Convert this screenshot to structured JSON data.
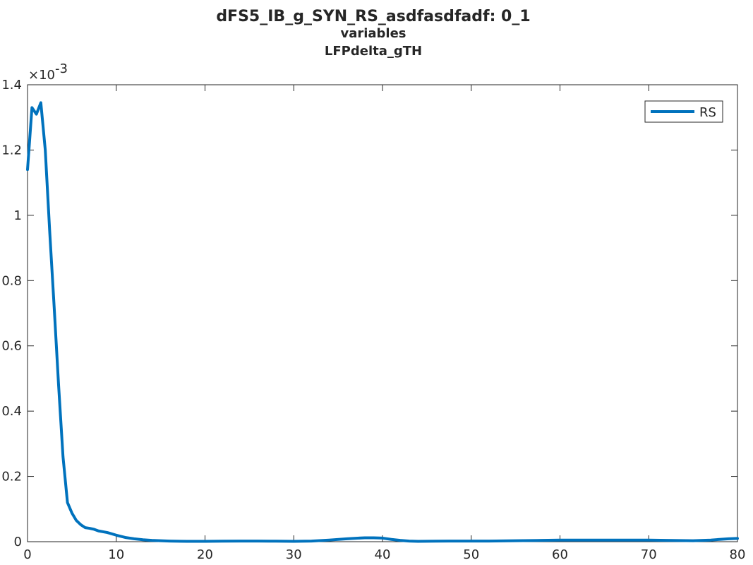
{
  "chart_data": {
    "type": "line",
    "title": "dFS5_IB_g_SYN_RS_asdfasdfadf: 0_1",
    "subtitle": "variables",
    "subtitle2": "LFPdelta_gTH",
    "xlabel": "",
    "ylabel": "",
    "xlim": [
      0,
      80
    ],
    "ylim": [
      0,
      0.0014
    ],
    "y_exponent": "-3",
    "x_ticks": [
      0,
      10,
      20,
      30,
      40,
      50,
      60,
      70,
      80
    ],
    "y_ticks": [
      0,
      0.0002,
      0.0004,
      0.0006,
      0.0008,
      0.001,
      0.0012,
      0.0014
    ],
    "y_tick_labels": [
      "0",
      "0.2",
      "0.4",
      "0.6",
      "0.8",
      "1",
      "1.2",
      "1.4"
    ],
    "x_tick_labels": [
      "0",
      "10",
      "20",
      "30",
      "40",
      "50",
      "60",
      "70",
      "80"
    ],
    "grid": false,
    "legend_position": "top-right",
    "series": [
      {
        "name": "RS",
        "color": "#0072BD",
        "x": [
          0,
          0.5,
          1,
          1.5,
          2,
          2.5,
          3,
          3.5,
          4,
          4.5,
          5,
          5.5,
          6,
          6.5,
          7,
          7.5,
          8,
          9,
          10,
          11,
          12,
          13,
          14,
          15,
          16,
          18,
          20,
          22,
          24,
          26,
          28,
          30,
          32,
          34,
          36,
          38,
          39,
          40,
          41,
          42,
          43,
          44,
          46,
          48,
          50,
          52,
          55,
          58,
          60,
          62,
          65,
          68,
          70,
          72,
          75,
          77,
          79,
          80
        ],
        "y": [
          0.00114,
          0.00133,
          0.00131,
          0.001345,
          0.0012,
          0.00095,
          0.00072,
          0.00048,
          0.00026,
          0.00012,
          8.8e-05,
          6.5e-05,
          5.2e-05,
          4.3e-05,
          4.1e-05,
          3.8e-05,
          3.3e-05,
          2.8e-05,
          2e-05,
          1.3e-05,
          9e-06,
          6e-06,
          4e-06,
          3e-06,
          2e-06,
          1e-06,
          1e-06,
          1.5e-06,
          2e-06,
          2e-06,
          1.5e-06,
          1e-06,
          2e-06,
          5e-06,
          9e-06,
          1.2e-05,
          1.2e-05,
          1.1e-05,
          7e-06,
          4e-06,
          2e-06,
          1e-06,
          1.5e-06,
          2e-06,
          2e-06,
          2e-06,
          3e-06,
          4e-06,
          5e-06,
          5e-06,
          5e-06,
          5e-06,
          5e-06,
          4e-06,
          3e-06,
          5e-06,
          9e-06,
          1e-05
        ]
      }
    ]
  }
}
